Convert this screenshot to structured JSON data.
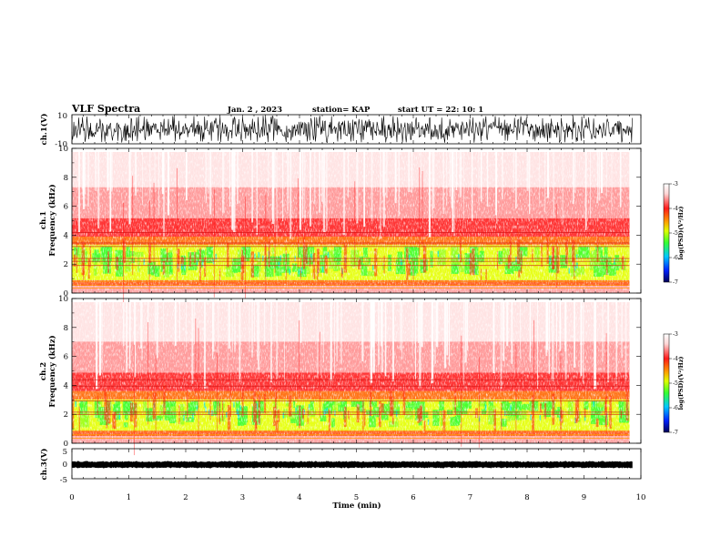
{
  "header": {
    "title": "VLF Spectra",
    "date": "Jan. 2 , 2023",
    "station": "station= KAP",
    "start": "start UT = 22: 10: 1"
  },
  "chart_data": [
    {
      "type": "line",
      "name": "ch1-waveform",
      "ylabel": "ch.1(V)",
      "ylim": [
        -10,
        10
      ],
      "yticks": [
        "10",
        "-10"
      ],
      "xlim": [
        0,
        10
      ]
    },
    {
      "type": "heatmap",
      "name": "ch1-spectrogram",
      "ylabel": "ch.1 Frequency (kHz)",
      "ylabel_top": "ch.1",
      "ylabel_bottom": "Frequency (kHz)",
      "ylim": [
        0,
        10
      ],
      "yticks": [
        "0",
        "2",
        "4",
        "6",
        "8",
        "10"
      ],
      "xlim": [
        0,
        10
      ],
      "data_end_min": 9.8,
      "colorbar": {
        "label": "log(PSD)(V²/Hz)",
        "range": [
          -7,
          -3
        ],
        "ticks": [
          "-3",
          "-4",
          "-5",
          "-6",
          "-7"
        ],
        "colors": [
          "#000055",
          "#0022ff",
          "#00c8ff",
          "#33ff33",
          "#ddff00",
          "#ff9900",
          "#ff1a1a",
          "#ffd6d6",
          "#ffffff"
        ]
      }
    },
    {
      "type": "heatmap",
      "name": "ch2-spectrogram",
      "ylabel": "ch.2 Frequency (kHz)",
      "ylabel_top": "ch.2",
      "ylabel_bottom": "Frequency (kHz)",
      "ylim": [
        0,
        10
      ],
      "yticks": [
        "0",
        "2",
        "4",
        "6",
        "8",
        "10"
      ],
      "xlim": [
        0,
        10
      ],
      "data_end_min": 9.8,
      "colorbar": {
        "label": "log(PSD)(V²/Hz)",
        "range": [
          -7,
          -3
        ],
        "ticks": [
          "-3",
          "-4",
          "-5",
          "-6",
          "-7"
        ],
        "colors": [
          "#000055",
          "#0022ff",
          "#00c8ff",
          "#33ff33",
          "#ddff00",
          "#ff9900",
          "#ff1a1a",
          "#ffd6d6",
          "#ffffff"
        ]
      }
    },
    {
      "type": "line",
      "name": "ch3-waveform",
      "ylabel": "ch.3(V)",
      "ylim": [
        -5,
        5
      ],
      "yticks": [
        "5",
        "0",
        "-5"
      ],
      "xlim": [
        0,
        10
      ],
      "xlabel": "Time (min)",
      "xticks": [
        "0",
        "1",
        "2",
        "3",
        "4",
        "5",
        "6",
        "7",
        "8",
        "9",
        "10"
      ]
    }
  ]
}
